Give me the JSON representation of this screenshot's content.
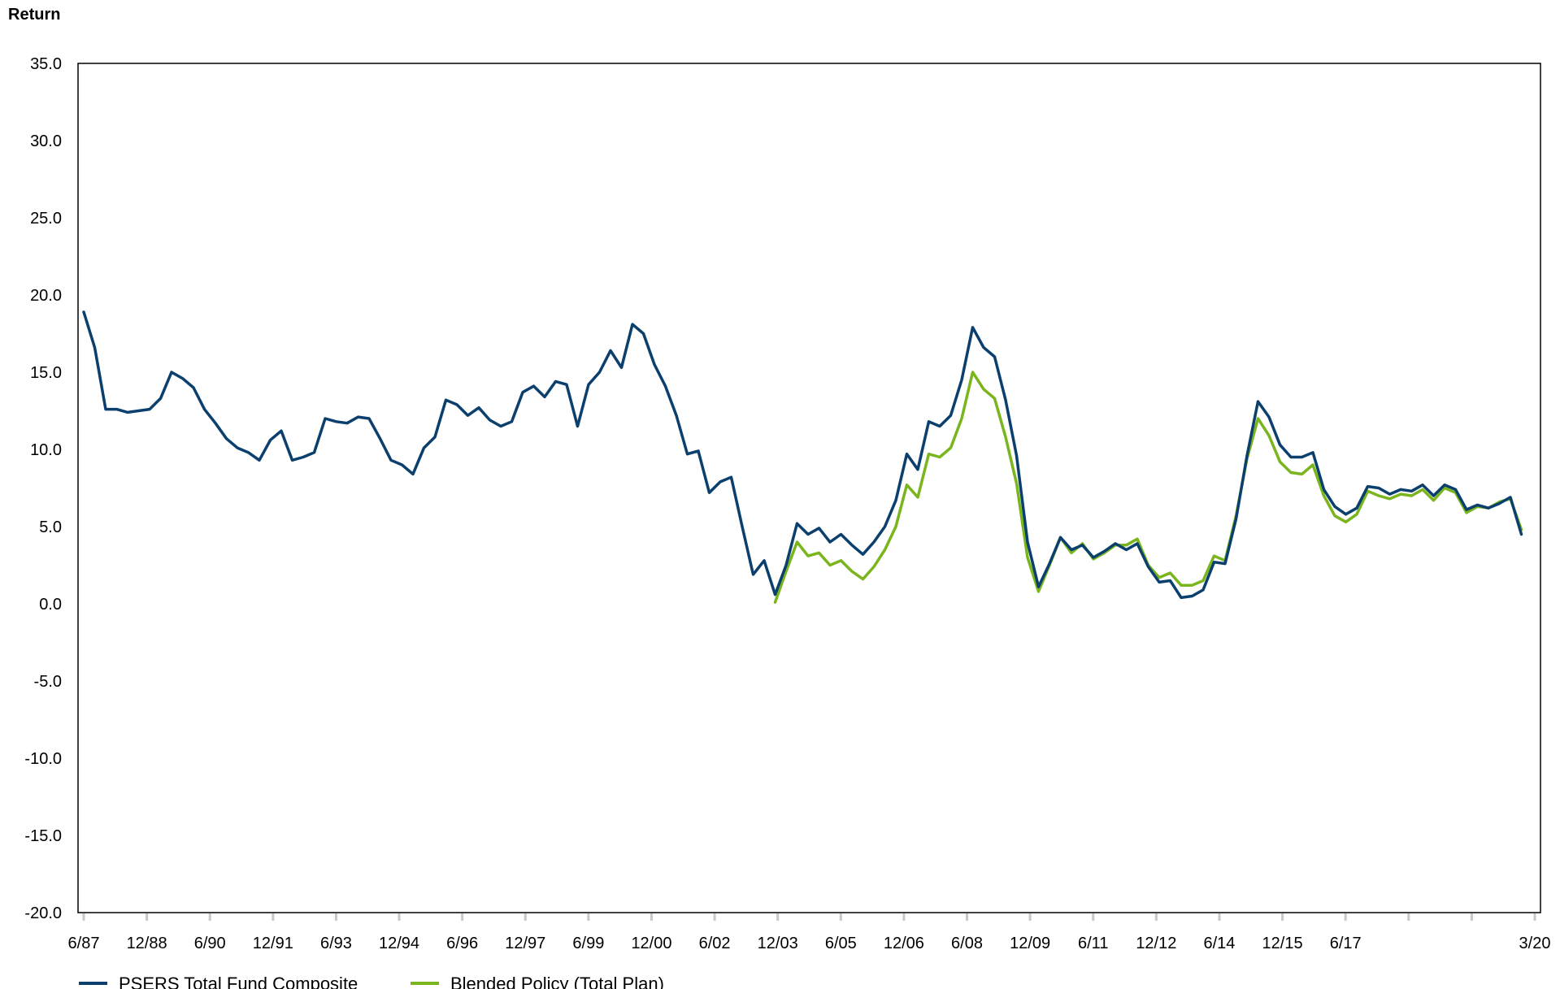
{
  "chart_data": {
    "type": "line",
    "title": "",
    "xlabel": "",
    "ylabel": "Return",
    "ylim": [
      -20,
      35
    ],
    "yticks": [
      "35.0",
      "30.0",
      "25.0",
      "20.0",
      "15.0",
      "10.0",
      "5.0",
      "0.0",
      "-5.0",
      "-10.0",
      "-15.0",
      "-20.0"
    ],
    "ytick_values": [
      35,
      30,
      25,
      20,
      15,
      10,
      5,
      0,
      -5,
      -10,
      -15,
      -20
    ],
    "x_start": "6/87",
    "x_end": "3/20",
    "x_tick_labels": [
      "6/87",
      "12/88",
      "6/90",
      "12/91",
      "6/93",
      "12/94",
      "6/96",
      "12/97",
      "6/99",
      "12/00",
      "6/02",
      "12/03",
      "6/05",
      "12/06",
      "6/08",
      "12/09",
      "6/11",
      "12/12",
      "6/14",
      "12/15",
      "6/17",
      "",
      "",
      "3/20"
    ],
    "grid": false,
    "legend_position": "bottom-left",
    "series": [
      {
        "name": "PSERS Total Fund Composite",
        "color": "#0b3f6e",
        "values": [
          18.9,
          16.6,
          12.6,
          12.6,
          12.4,
          12.5,
          12.6,
          13.3,
          15.0,
          14.6,
          14.0,
          12.6,
          11.7,
          10.7,
          10.1,
          9.8,
          9.3,
          10.6,
          11.2,
          9.3,
          9.5,
          9.8,
          12.0,
          11.8,
          11.7,
          12.1,
          12.0,
          10.7,
          9.3,
          9.0,
          8.4,
          10.1,
          10.8,
          13.2,
          12.9,
          12.2,
          12.7,
          11.9,
          11.5,
          11.8,
          13.7,
          14.1,
          13.4,
          14.4,
          14.2,
          11.5,
          14.2,
          15.0,
          16.4,
          15.3,
          18.1,
          17.5,
          15.5,
          14.1,
          12.2,
          9.7,
          9.9,
          7.2,
          7.9,
          8.2,
          5.0,
          1.9,
          2.8,
          0.6,
          2.5,
          5.2,
          4.5,
          4.9,
          4.0,
          4.5,
          3.8,
          3.2,
          4.0,
          5.0,
          6.7,
          9.7,
          8.7,
          11.8,
          11.5,
          12.2,
          14.5,
          17.9,
          16.6,
          16.0,
          13.2,
          9.6,
          4.0,
          1.1,
          2.6,
          4.3,
          3.5,
          3.8,
          3.0,
          3.4,
          3.9,
          3.5,
          3.9,
          2.4,
          1.4,
          1.5,
          0.4,
          0.5,
          0.9,
          2.7,
          2.6,
          5.5,
          9.6,
          13.1,
          12.1,
          10.3,
          9.5,
          9.5,
          9.8,
          7.4,
          6.3,
          5.8,
          6.2,
          7.6,
          7.5,
          7.1,
          7.4,
          7.3,
          7.7,
          7.0,
          7.7,
          7.4,
          6.1,
          6.4,
          6.2,
          6.5,
          6.9,
          4.5
        ]
      },
      {
        "name": "Blended Policy (Total Plan)",
        "color": "#7ab51d",
        "start_index": 63,
        "values": [
          0.1,
          2.1,
          4.0,
          3.1,
          3.3,
          2.5,
          2.8,
          2.1,
          1.6,
          2.4,
          3.5,
          5.0,
          7.7,
          6.9,
          9.7,
          9.5,
          10.1,
          12.0,
          15.0,
          13.9,
          13.3,
          10.8,
          7.8,
          3.0,
          0.8,
          2.5,
          4.3,
          3.3,
          3.9,
          2.9,
          3.3,
          3.8,
          3.8,
          4.2,
          2.5,
          1.7,
          2.0,
          1.2,
          1.2,
          1.5,
          3.1,
          2.8,
          5.7,
          9.4,
          12.0,
          10.9,
          9.2,
          8.5,
          8.4,
          9.0,
          7.0,
          5.7,
          5.3,
          5.8,
          7.3,
          7.0,
          6.8,
          7.1,
          7.0,
          7.4,
          6.7,
          7.5,
          7.2,
          5.9,
          6.3,
          6.2,
          6.6,
          6.8,
          4.8
        ]
      }
    ]
  }
}
